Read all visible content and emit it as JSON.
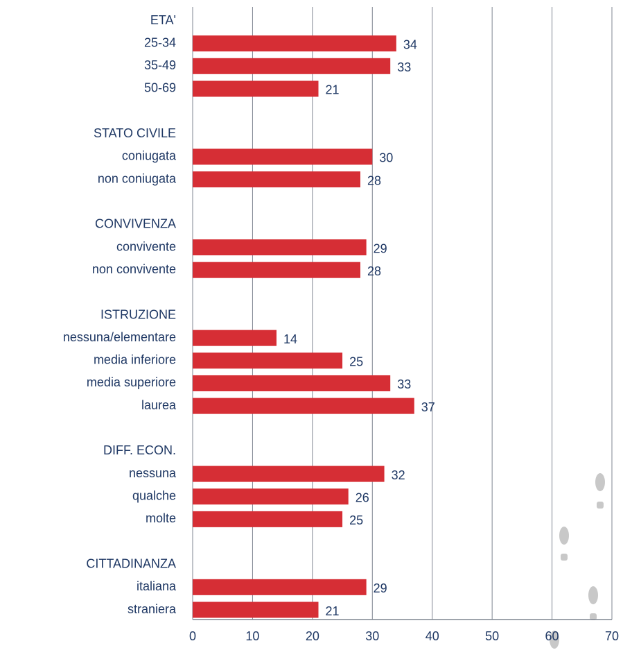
{
  "chart_data": {
    "type": "bar",
    "orientation": "horizontal",
    "color": "#d62e35",
    "categories": [
      "ETA'",
      "25-34",
      "35-49",
      "50-69",
      null,
      "STATO CIVILE",
      "coniugata",
      "non coniugata",
      null,
      "CONVIVENZA",
      "convivente",
      "non convivente",
      null,
      "ISTRUZIONE",
      "nessuna/elementare",
      "media inferiore",
      "media superiore",
      "laurea",
      null,
      "DIFF. ECON.",
      "nessuna",
      "qualche",
      "molte",
      null,
      "CITTADINANZA",
      "italiana",
      "straniera"
    ],
    "values": [
      null,
      34,
      33,
      21,
      null,
      null,
      30,
      28,
      null,
      null,
      29,
      28,
      null,
      null,
      14,
      25,
      33,
      37,
      null,
      null,
      32,
      26,
      25,
      null,
      null,
      29,
      21
    ],
    "xlim": [
      0,
      70
    ],
    "xticks": [
      0,
      10,
      20,
      30,
      40,
      50,
      60,
      70
    ],
    "grid": true
  }
}
